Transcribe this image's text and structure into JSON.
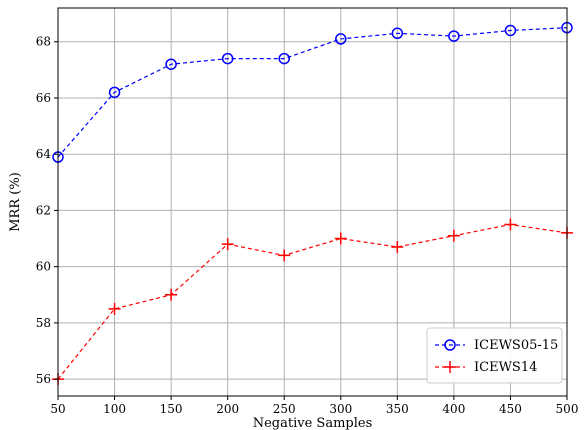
{
  "chart_data": {
    "type": "line",
    "xlabel": "Negative Samples",
    "ylabel": "MRR (%)",
    "x": [
      50,
      100,
      150,
      200,
      250,
      300,
      350,
      400,
      450,
      500
    ],
    "xlim": [
      50,
      500
    ],
    "ylim": [
      55.4,
      69.2
    ],
    "xticks": [
      "50",
      "100",
      "150",
      "200",
      "250",
      "300",
      "350",
      "400",
      "450",
      "500"
    ],
    "yticks": [
      "56",
      "58",
      "60",
      "62",
      "64",
      "66",
      "68"
    ],
    "grid": true,
    "legend_position": "lower-right",
    "series": [
      {
        "name": "ICEWS05-15",
        "color": "#0000ff",
        "marker": "circle",
        "linestyle": "dashed",
        "values": [
          63.9,
          66.2,
          67.2,
          67.4,
          67.4,
          68.1,
          68.3,
          68.2,
          68.4,
          68.5
        ]
      },
      {
        "name": "ICEWS14",
        "color": "#ff0000",
        "marker": "plus",
        "linestyle": "dashed",
        "values": [
          56.0,
          58.5,
          59.0,
          60.8,
          60.4,
          61.0,
          60.7,
          61.1,
          61.5,
          61.2
        ]
      }
    ]
  }
}
